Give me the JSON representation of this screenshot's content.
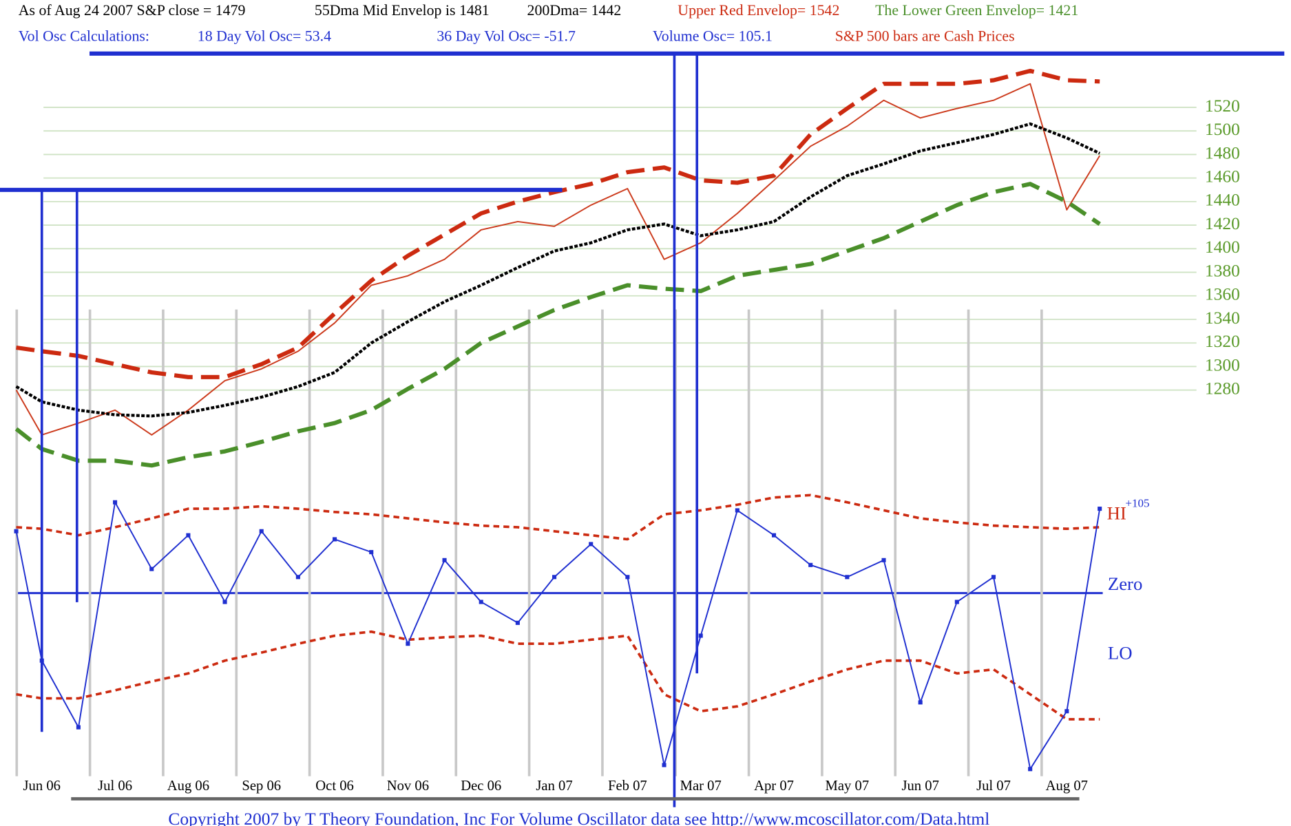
{
  "header": {
    "line1": [
      "As of Aug 24  2007  S&P close = 1479",
      "55Dma Mid Envelop is  1481",
      "200Dma=  1442",
      "Upper Red Envelop= 1542",
      "The Lower Green Envelop=  1421"
    ],
    "line2": [
      "Vol Osc Calculations:",
      "18 Day Vol Osc=  53.4",
      "36 Day Vol Osc= -51.7",
      "Volume Osc=  105.1",
      "S&P 500 bars are Cash Prices"
    ]
  },
  "footer": "Copyright 2007 by T Theory Foundation, Inc  For Volume Oscillator data see http://www.mcoscillator.com/Data.html",
  "chart_data": [
    {
      "type": "line",
      "x": [
        -0.35,
        0,
        0.5,
        1,
        1.5,
        2,
        2.5,
        3,
        3.5,
        4,
        4.5,
        5,
        5.5,
        6,
        6.5,
        7,
        7.5,
        8,
        8.5,
        9,
        9.5,
        10,
        10.5,
        11,
        11.5,
        12,
        12.5,
        13,
        13.5,
        14,
        14.45
      ],
      "xlim": [
        -0.5,
        14.6
      ],
      "ylim": [
        1200,
        1560
      ],
      "yticks": [
        1280,
        1300,
        1320,
        1340,
        1360,
        1380,
        1400,
        1420,
        1440,
        1460,
        1480,
        1500,
        1520
      ],
      "grid": true,
      "series": [
        {
          "color": "#cc3a1c",
          "style": "solid",
          "values": [
            1280,
            1242,
            1252,
            1263,
            1242,
            1263,
            1288,
            1298,
            1313,
            1337,
            1369,
            1377,
            1391,
            1416,
            1423,
            1419,
            1437,
            1451,
            1391,
            1405,
            1430,
            1458,
            1487,
            1504,
            1526,
            1511,
            1519,
            1526,
            1540,
            1433,
            1479
          ]
        },
        {
          "color": "#000000",
          "style": "dotted",
          "values": [
            1283,
            1270,
            1263,
            1259,
            1258,
            1261,
            1267,
            1274,
            1283,
            1295,
            1320,
            1338,
            1355,
            1369,
            1384,
            1398,
            1405,
            1416,
            1421,
            1411,
            1416,
            1423,
            1444,
            1462,
            1472,
            1483,
            1490,
            1497,
            1506,
            1494,
            1481
          ]
        },
        {
          "color": "#cc2a10",
          "style": "heavy-dashed",
          "values": [
            1316,
            1313,
            1309,
            1302,
            1295,
            1291,
            1291,
            1302,
            1316,
            1345,
            1373,
            1394,
            1412,
            1430,
            1440,
            1448,
            1455,
            1465,
            1469,
            1458,
            1456,
            1462,
            1497,
            1519,
            1540,
            1540,
            1540,
            1543,
            1551,
            1543,
            1542
          ]
        },
        {
          "color": "#4a8f2a",
          "style": "heavy-dashed",
          "values": [
            1247,
            1230,
            1220,
            1220,
            1216,
            1223,
            1228,
            1236,
            1245,
            1252,
            1263,
            1281,
            1298,
            1320,
            1334,
            1348,
            1359,
            1369,
            1366,
            1364,
            1377,
            1382,
            1387,
            1398,
            1409,
            1423,
            1437,
            1448,
            1455,
            1440,
            1421
          ]
        }
      ]
    },
    {
      "type": "line",
      "x": [
        -0.35,
        0,
        0.5,
        1,
        1.5,
        2,
        2.5,
        3,
        3.5,
        4,
        4.5,
        5,
        5.5,
        6,
        6.5,
        7,
        7.5,
        8,
        8.5,
        9,
        9.5,
        10,
        10.5,
        11,
        11.5,
        12,
        12.5,
        13,
        13.5,
        14,
        14.45
      ],
      "xlim": [
        -0.5,
        14.6
      ],
      "xticks": [
        {
          "value": 0,
          "label": "Jun 06"
        },
        {
          "value": 1,
          "label": "Jul 06"
        },
        {
          "value": 2,
          "label": "Aug 06"
        },
        {
          "value": 3,
          "label": "Sep 06"
        },
        {
          "value": 4,
          "label": "Oct 06"
        },
        {
          "value": 5,
          "label": "Nov 06"
        },
        {
          "value": 6,
          "label": "Dec 06"
        },
        {
          "value": 7,
          "label": "Jan 07"
        },
        {
          "value": 8,
          "label": "Feb 07"
        },
        {
          "value": 9,
          "label": "Mar 07"
        },
        {
          "value": 10,
          "label": "Apr 07"
        },
        {
          "value": 11,
          "label": "May 07"
        },
        {
          "value": 12,
          "label": "Jun 07"
        },
        {
          "value": 13,
          "label": "Jul 07"
        },
        {
          "value": 14,
          "label": "Aug 07"
        }
      ],
      "ylim": [
        -230,
        125
      ],
      "yticks": [
        {
          "value": 0,
          "label": "Zero"
        }
      ],
      "annotations": [
        "HI",
        "+105",
        "LO"
      ],
      "series": [
        {
          "color": "#cc2a10",
          "style": "dashed",
          "values": [
            82,
            80,
            72,
            82,
            93,
            105,
            105,
            108,
            105,
            101,
            98,
            93,
            88,
            84,
            82,
            77,
            72,
            67,
            98,
            103,
            110,
            119,
            122,
            113,
            103,
            93,
            88,
            84,
            82,
            80,
            82
          ]
        },
        {
          "color": "#cc2a10",
          "style": "dashed",
          "values": [
            -126,
            -131,
            -131,
            -121,
            -110,
            -100,
            -84,
            -74,
            -63,
            -53,
            -48,
            -58,
            -55,
            -53,
            -63,
            -63,
            -58,
            -53,
            -126,
            -147,
            -141,
            -126,
            -110,
            -95,
            -84,
            -84,
            -100,
            -95,
            -126,
            -157,
            -157
          ]
        },
        {
          "color": "#1f2fd0",
          "style": "solid",
          "markers": true,
          "values": [
            77,
            -84,
            -167,
            113,
            30,
            72,
            -11,
            77,
            20,
            67,
            51,
            -63,
            41,
            -11,
            -37,
            20,
            61,
            20,
            -214,
            -53,
            103,
            72,
            35,
            20,
            41,
            -136,
            -11,
            20,
            -219,
            -147,
            105
          ]
        }
      ]
    }
  ]
}
